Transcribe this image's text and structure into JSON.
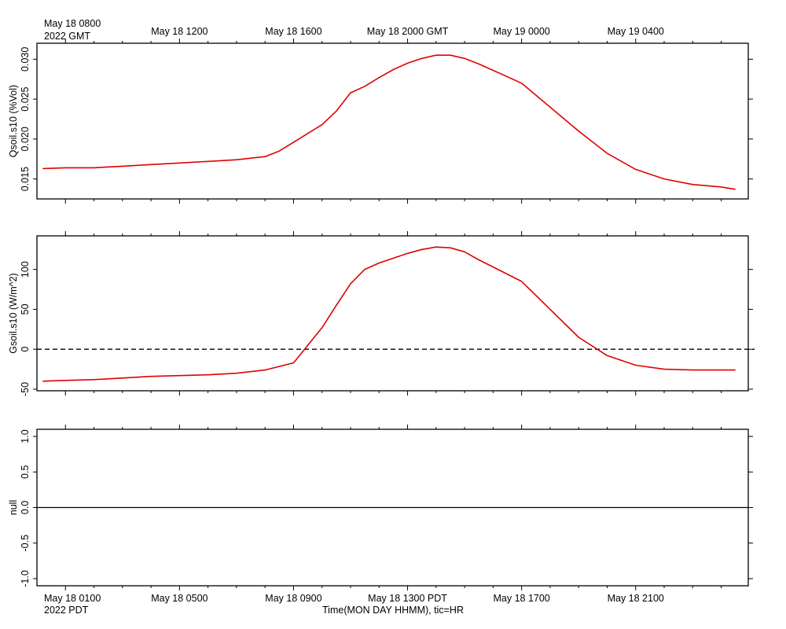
{
  "top_axis": {
    "first_label": "May 18 0800",
    "first_sublabel": "2022 GMT",
    "labels": [
      "May 18 1200",
      "May 18 1600",
      "May 18 2000 GMT",
      "May 19 0000",
      "May 19 0400"
    ]
  },
  "bottom_axis": {
    "first_label": "May 18 0100",
    "first_sublabel": "2022 PDT",
    "labels": [
      "May 18 0500",
      "May 18 0900",
      "May 18 1300 PDT",
      "May 18 1700",
      "May 18 2100"
    ],
    "title": "Time(MON DAY HHMM), tic=HR"
  },
  "chart_data": [
    {
      "type": "line",
      "ylabel": "Qsoil.s10 (%Vol)",
      "ylim": [
        0.0125,
        0.032
      ],
      "yticks": [
        "0.015",
        "0.020",
        "0.025",
        "0.030"
      ],
      "xlabel": "",
      "color": "#e00000",
      "series": [
        {
          "x_hours_pdt": [
            -0.8,
            0,
            1,
            2,
            3,
            4,
            5,
            6,
            6.5,
            7,
            7.5,
            8,
            8.5,
            9,
            9.5,
            10,
            10.5,
            11,
            11.5,
            12,
            12.5,
            13,
            13.5,
            14,
            14.5,
            15,
            16,
            17,
            18,
            19,
            20,
            21,
            22,
            23,
            23.5
          ],
          "values": [
            0.0163,
            0.0164,
            0.0164,
            0.0166,
            0.0168,
            0.017,
            0.0172,
            0.0174,
            0.0176,
            0.0178,
            0.0185,
            0.0196,
            0.0207,
            0.0218,
            0.0235,
            0.0258,
            0.0266,
            0.0277,
            0.0287,
            0.0295,
            0.0301,
            0.0305,
            0.0305,
            0.0301,
            0.0294,
            0.0286,
            0.027,
            0.024,
            0.021,
            0.0182,
            0.0162,
            0.015,
            0.0143,
            0.014,
            0.0137
          ]
        }
      ]
    },
    {
      "type": "line",
      "ylabel": "Gsoil.s10 (W/m^2)",
      "ylim": [
        -52,
        142
      ],
      "yticks": [
        "-50",
        "0",
        "50",
        "100"
      ],
      "xlabel": "",
      "color": "#e00000",
      "reference_line": {
        "y": 0,
        "style": "dashed"
      },
      "series": [
        {
          "x_hours_pdt": [
            -0.8,
            0,
            1,
            2,
            3,
            4,
            5,
            6,
            7,
            8,
            8.5,
            9,
            9.5,
            10,
            10.5,
            11,
            11.5,
            12,
            12.5,
            13,
            13.5,
            14,
            14.5,
            15,
            16,
            17,
            18,
            19,
            20,
            21,
            22,
            23,
            23.5
          ],
          "values": [
            -40,
            -39,
            -38,
            -36,
            -34,
            -33,
            -32,
            -30,
            -26,
            -17,
            5,
            27,
            55,
            82,
            100,
            108,
            114,
            120,
            125,
            128,
            127,
            122,
            112,
            103,
            85,
            50,
            15,
            -8,
            -20,
            -25,
            -26,
            -26,
            -26
          ]
        }
      ]
    },
    {
      "type": "line",
      "ylabel": "null",
      "ylim": [
        -1.1,
        1.1
      ],
      "yticks": [
        "-1.0",
        "-0.5",
        "0.0",
        "0.5",
        "1.0"
      ],
      "xlabel": "",
      "reference_line": {
        "y": 0,
        "style": "solid"
      },
      "series": []
    }
  ]
}
